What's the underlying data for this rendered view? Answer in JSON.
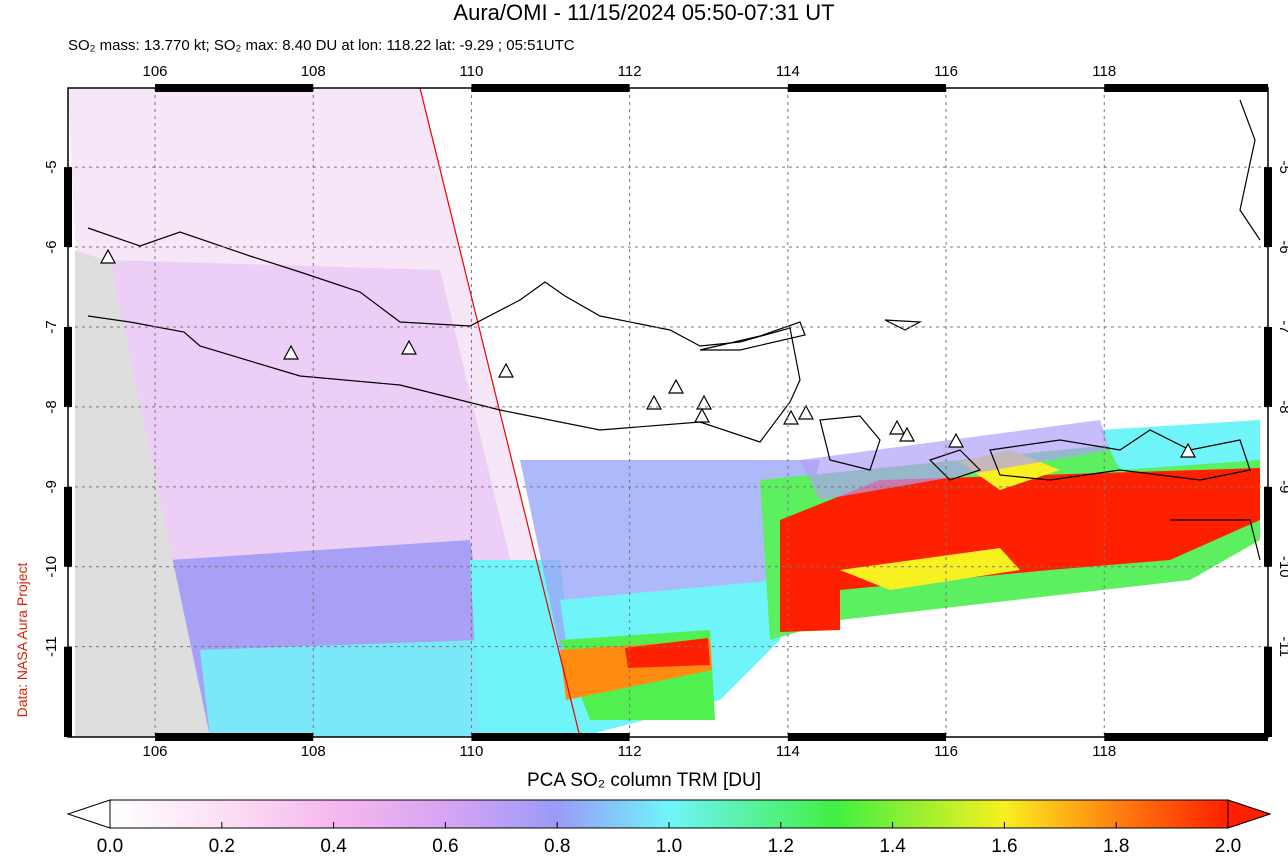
{
  "header": {
    "title": "Aura/OMI - 11/15/2024 05:50-07:31 UT",
    "subtitle": "SO₂ mass: 13.770 kt; SO₂ max: 8.40 DU at lon: 118.22 lat: -9.29 ; 05:51UTC"
  },
  "map": {
    "xlim": [
      104.9,
      120.07
    ],
    "ylim": [
      -12.13,
      -4.01
    ],
    "xticks": [
      106,
      108,
      110,
      112,
      114,
      116,
      118
    ],
    "yticks": [
      -5,
      -6,
      -7,
      -8,
      -9,
      -10,
      -11
    ],
    "credit": "Data: NASA Aura Project"
  },
  "colorbar": {
    "label": "PCA SO₂ column TRM [DU]",
    "lim": [
      0,
      2
    ],
    "ticks": [
      {
        "value": 0,
        "label": "0.0"
      },
      0.2,
      0.4,
      0.6,
      0.8,
      {
        "value": 1,
        "label": "1.0"
      },
      1.2,
      1.4,
      1.6,
      1.8,
      {
        "value": 2,
        "label": "2.0"
      }
    ]
  }
}
